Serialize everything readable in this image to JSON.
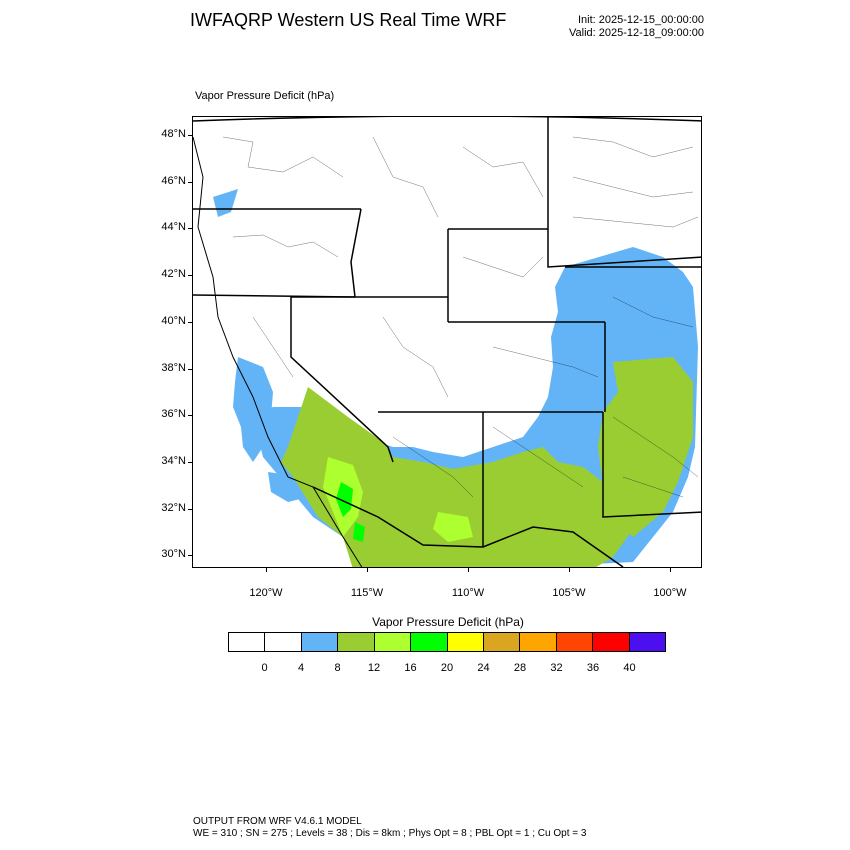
{
  "header": {
    "title": "IWFAQRP Western US Real Time WRF",
    "init": "Init: 2025-12-15_00:00:00",
    "valid": "Valid: 2025-12-18_09:00:00"
  },
  "plot": {
    "subtitle": "Vapor Pressure Deficit   (hPa)",
    "lat_labels": [
      "48°N",
      "46°N",
      "44°N",
      "42°N",
      "40°N",
      "38°N",
      "36°N",
      "34°N",
      "32°N",
      "30°N"
    ],
    "lon_labels": [
      "120°W",
      "115°W",
      "110°W",
      "105°W",
      "100°W"
    ]
  },
  "colorbar": {
    "title": "Vapor Pressure Deficit  (hPa)",
    "levels": [
      "0",
      "4",
      "8",
      "12",
      "16",
      "20",
      "24",
      "28",
      "32",
      "36",
      "40"
    ],
    "colors": [
      "#ffffff",
      "#ffffff",
      "#63b4f7",
      "#9acd32",
      "#adff2f",
      "#00ff00",
      "#ffff00",
      "#daa520",
      "#ffa500",
      "#ff4500",
      "#ff0000",
      "#4b0ff0"
    ]
  },
  "footer": {
    "line1": "OUTPUT FROM WRF V4.6.1 MODEL",
    "line2": "WE = 310 ; SN = 275 ; Levels = 38 ; Dis = 8km ; Phys Opt = 8 ; PBL Opt = 1 ; Cu Opt = 3"
  }
}
